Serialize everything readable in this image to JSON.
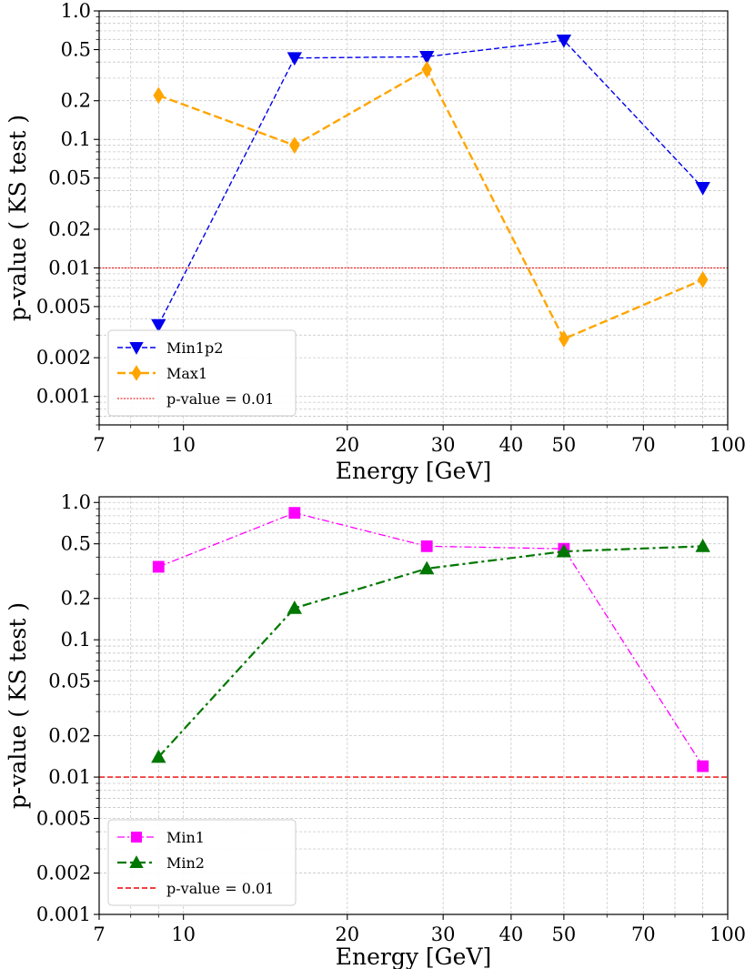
{
  "chart_data": [
    {
      "type": "line",
      "xlabel": "Energy [GeV]",
      "ylabel": "p-value  ( KS test )",
      "x_scale": "log",
      "y_scale": "log",
      "xlim": [
        7,
        100
      ],
      "ylim": [
        0.0006,
        1.0
      ],
      "xticks": [
        7,
        10,
        20,
        30,
        40,
        50,
        70,
        100
      ],
      "yticks": [
        0.001,
        0.002,
        0.005,
        0.01,
        0.02,
        0.05,
        0.1,
        0.2,
        0.5,
        1.0
      ],
      "ytick_labels": [
        "0.001",
        "0.002",
        "0.005",
        "0.01",
        "0.02",
        "0.05",
        "0.1",
        "0.2",
        "0.5",
        "1.0"
      ],
      "grid": true,
      "legend_position": "lower-left",
      "series": [
        {
          "name": "Min1p2",
          "color": "#0000ee",
          "marker": "triangle-down",
          "linestyle": "dashed",
          "x": [
            9,
            16,
            28,
            50,
            90
          ],
          "values": [
            0.0036,
            0.43,
            0.44,
            0.59,
            0.042
          ]
        },
        {
          "name": "Max1",
          "color": "#ffa500",
          "marker": "diamond",
          "linestyle": "dashed-thick",
          "x": [
            9,
            16,
            28,
            50,
            90
          ],
          "values": [
            0.22,
            0.09,
            0.35,
            0.0028,
            0.0081
          ]
        }
      ],
      "reference_line": {
        "name": "p-value = 0.01",
        "y": 0.01,
        "color": "#ee0000",
        "linestyle": "dotted"
      }
    },
    {
      "type": "line",
      "xlabel": "Energy [GeV]",
      "ylabel": "p-value  ( KS test )",
      "x_scale": "log",
      "y_scale": "log",
      "xlim": [
        7,
        100
      ],
      "ylim": [
        0.001,
        1.1
      ],
      "xticks": [
        7,
        10,
        20,
        30,
        40,
        50,
        70,
        100
      ],
      "yticks": [
        0.001,
        0.002,
        0.005,
        0.01,
        0.02,
        0.05,
        0.1,
        0.2,
        0.5,
        1.0
      ],
      "ytick_labels": [
        "0.001",
        "0.002",
        "0.005",
        "0.01",
        "0.02",
        "0.05",
        "0.1",
        "0.2",
        "0.5",
        "1.0"
      ],
      "grid": true,
      "legend_position": "lower-left",
      "series": [
        {
          "name": "Min1",
          "color": "#ff00ff",
          "marker": "square",
          "linestyle": "dash-dot",
          "x": [
            9,
            16,
            28,
            50,
            90
          ],
          "values": [
            0.34,
            0.84,
            0.48,
            0.46,
            0.012
          ]
        },
        {
          "name": "Min2",
          "color": "#007700",
          "marker": "triangle-up",
          "linestyle": "dash-dot-thick",
          "x": [
            9,
            16,
            28,
            50,
            90
          ],
          "values": [
            0.014,
            0.17,
            0.33,
            0.44,
            0.48
          ]
        }
      ],
      "reference_line": {
        "name": "p-value = 0.01",
        "y": 0.01,
        "color": "#ee0000",
        "linestyle": "dashed"
      }
    }
  ]
}
